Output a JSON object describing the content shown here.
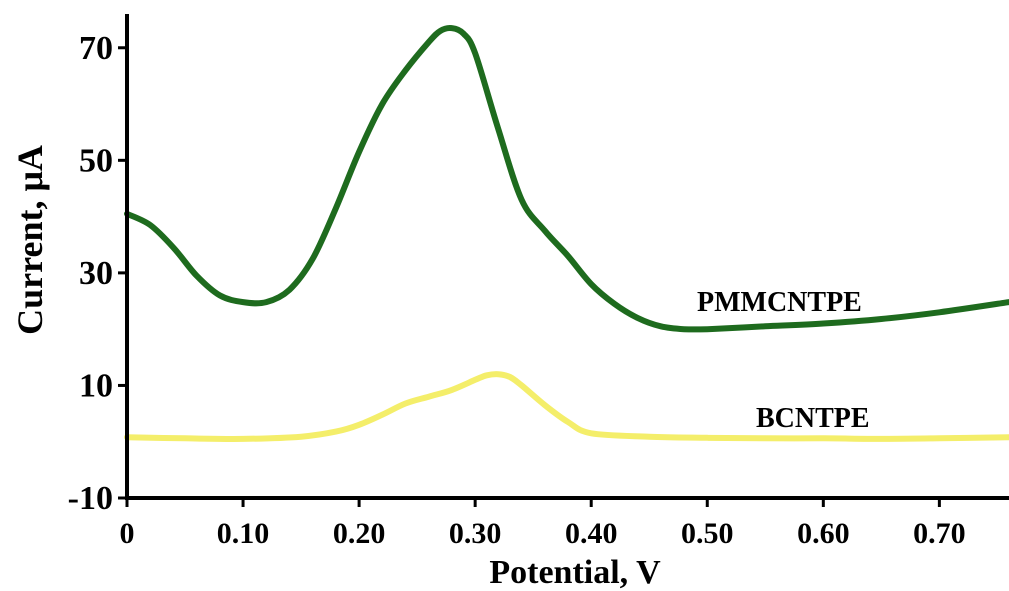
{
  "chart_data": {
    "type": "line",
    "xlabel": "Potential, V",
    "ylabel": "Current, μA",
    "xlim": [
      0,
      0.76
    ],
    "ylim": [
      -10,
      76
    ],
    "grid": false,
    "legend": "none",
    "x_ticks": [
      {
        "value": 0.0,
        "label": "0"
      },
      {
        "value": 0.1,
        "label": "0.10"
      },
      {
        "value": 0.2,
        "label": "0.20"
      },
      {
        "value": 0.3,
        "label": "0.30"
      },
      {
        "value": 0.4,
        "label": "0.40"
      },
      {
        "value": 0.5,
        "label": "0.50"
      },
      {
        "value": 0.6,
        "label": "0.60"
      },
      {
        "value": 0.7,
        "label": "0.70"
      }
    ],
    "y_ticks": [
      {
        "value": -10,
        "label": "-10"
      },
      {
        "value": 10,
        "label": "10"
      },
      {
        "value": 30,
        "label": "30"
      },
      {
        "value": 50,
        "label": "50"
      },
      {
        "value": 70,
        "label": "70"
      }
    ],
    "series": [
      {
        "name": "PMMCNTPE",
        "color": "#1e6b1e",
        "x": [
          0.0,
          0.02,
          0.04,
          0.06,
          0.08,
          0.1,
          0.12,
          0.14,
          0.16,
          0.18,
          0.2,
          0.22,
          0.24,
          0.26,
          0.27,
          0.28,
          0.29,
          0.3,
          0.32,
          0.34,
          0.36,
          0.38,
          0.4,
          0.42,
          0.44,
          0.46,
          0.48,
          0.5,
          0.55,
          0.6,
          0.65,
          0.7,
          0.76
        ],
        "y": [
          40.5,
          38.5,
          34.5,
          29.5,
          26.0,
          24.8,
          24.8,
          27.0,
          32.5,
          41.5,
          51.5,
          60.0,
          66.0,
          71.0,
          73.0,
          73.5,
          72.5,
          69.0,
          55.5,
          43.0,
          37.5,
          33.0,
          28.0,
          24.5,
          22.0,
          20.5,
          20.0,
          20.0,
          20.5,
          21.0,
          21.8,
          23.0,
          24.8
        ]
      },
      {
        "name": "BCNTPE",
        "color": "#f4ee6a",
        "x": [
          0.0,
          0.05,
          0.1,
          0.15,
          0.18,
          0.2,
          0.22,
          0.24,
          0.26,
          0.28,
          0.3,
          0.31,
          0.32,
          0.33,
          0.34,
          0.36,
          0.38,
          0.4,
          0.45,
          0.5,
          0.55,
          0.6,
          0.65,
          0.7,
          0.76
        ],
        "y": [
          0.8,
          0.6,
          0.5,
          0.9,
          1.8,
          3.0,
          4.8,
          6.8,
          8.0,
          9.2,
          11.0,
          11.8,
          12.0,
          11.5,
          10.0,
          6.5,
          3.5,
          1.5,
          0.9,
          0.7,
          0.6,
          0.6,
          0.5,
          0.6,
          0.8
        ]
      }
    ]
  }
}
